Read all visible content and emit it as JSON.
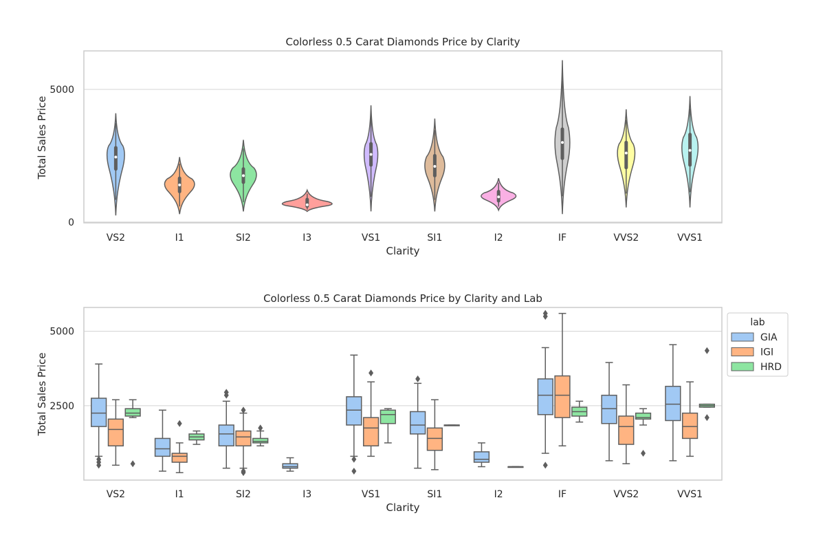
{
  "chart_data": [
    {
      "type": "violin",
      "title": "Colorless 0.5 Carat Diamonds Price by Clarity",
      "xlabel": "Clarity",
      "ylabel": "Total Sales Price",
      "ylim": [
        -30,
        6450
      ],
      "yticks": [
        0,
        5000
      ],
      "grid": true,
      "categories": [
        "VS2",
        "I1",
        "SI2",
        "I3",
        "VS1",
        "SI1",
        "I2",
        "IF",
        "VVS2",
        "VVS1"
      ],
      "colors": [
        "#a1c9f4",
        "#ffb482",
        "#8de5a1",
        "#ff9f9b",
        "#d0bbff",
        "#debb9b",
        "#fab0e4",
        "#cfcfcf",
        "#fffea3",
        "#b9f2f0"
      ],
      "violins": [
        {
          "min": 250,
          "max": 4100,
          "q1": 2000,
          "median": 2450,
          "q3": 2800,
          "center": 2600,
          "halfwidth": 0.14
        },
        {
          "min": 300,
          "max": 2450,
          "q1": 1150,
          "median": 1400,
          "q3": 1650,
          "center": 1450,
          "halfwidth": 0.24
        },
        {
          "min": 400,
          "max": 3100,
          "q1": 1500,
          "median": 1750,
          "q3": 2000,
          "center": 1800,
          "halfwidth": 0.21
        },
        {
          "min": 400,
          "max": 1200,
          "q1": 600,
          "median": 650,
          "q3": 850,
          "center": 680,
          "halfwidth": 0.4
        },
        {
          "min": 400,
          "max": 4400,
          "q1": 2150,
          "median": 2550,
          "q3": 2950,
          "center": 2600,
          "halfwidth": 0.11
        },
        {
          "min": 400,
          "max": 3900,
          "q1": 1750,
          "median": 2100,
          "q3": 2500,
          "center": 2150,
          "halfwidth": 0.16
        },
        {
          "min": 450,
          "max": 1650,
          "q1": 800,
          "median": 950,
          "q3": 1150,
          "center": 980,
          "halfwidth": 0.28
        },
        {
          "min": 300,
          "max": 6100,
          "q1": 2400,
          "median": 3000,
          "q3": 3500,
          "center": 3000,
          "halfwidth": 0.12
        },
        {
          "min": 550,
          "max": 4250,
          "q1": 2050,
          "median": 2600,
          "q3": 3000,
          "center": 2650,
          "halfwidth": 0.14
        },
        {
          "min": 550,
          "max": 4750,
          "q1": 2150,
          "median": 2700,
          "q3": 3300,
          "center": 2850,
          "halfwidth": 0.13
        }
      ]
    },
    {
      "type": "box",
      "title": "Colorless 0.5 Carat Diamonds Price by Clarity and Lab",
      "xlabel": "Clarity",
      "ylabel": "Total Sales Price",
      "ylim": [
        0,
        5800
      ],
      "yticks": [
        2500,
        5000
      ],
      "grid": true,
      "legend": {
        "title": "lab",
        "position": "outside right"
      },
      "categories": [
        "VS2",
        "I1",
        "SI2",
        "I3",
        "VS1",
        "SI1",
        "I2",
        "IF",
        "VVS2",
        "VVS1"
      ],
      "series": [
        {
          "name": "GIA",
          "color": "#a1c9f4",
          "boxes": [
            {
              "whislo": 800,
              "q1": 1800,
              "median": 2250,
              "q3": 2750,
              "whishi": 3900,
              "fliers": [
                700,
                600,
                500
              ]
            },
            {
              "whislo": 300,
              "q1": 800,
              "median": 1050,
              "q3": 1400,
              "whishi": 2350,
              "fliers": []
            },
            {
              "whislo": 400,
              "q1": 1150,
              "median": 1550,
              "q3": 1850,
              "whishi": 2650,
              "fliers": [
                2850,
                2950
              ]
            },
            {
              "whislo": 300,
              "q1": 400,
              "median": 450,
              "q3": 550,
              "whishi": 750,
              "fliers": []
            },
            {
              "whislo": 800,
              "q1": 1850,
              "median": 2350,
              "q3": 2800,
              "whishi": 4200,
              "fliers": [
                700,
                300
              ]
            },
            {
              "whislo": 400,
              "q1": 1550,
              "median": 1850,
              "q3": 2300,
              "whishi": 3250,
              "fliers": [
                3400
              ]
            },
            {
              "whislo": 450,
              "q1": 600,
              "median": 700,
              "q3": 950,
              "whishi": 1250,
              "fliers": []
            },
            {
              "whislo": 900,
              "q1": 2200,
              "median": 2850,
              "q3": 3400,
              "whishi": 4450,
              "fliers": [
                5500,
                5600,
                500
              ]
            },
            {
              "whislo": 650,
              "q1": 1900,
              "median": 2400,
              "q3": 2850,
              "whishi": 3950,
              "fliers": []
            },
            {
              "whislo": 650,
              "q1": 2000,
              "median": 2550,
              "q3": 3150,
              "whishi": 4550,
              "fliers": []
            }
          ]
        },
        {
          "name": "IGI",
          "color": "#ffb482",
          "boxes": [
            {
              "whislo": 500,
              "q1": 1150,
              "median": 1700,
              "q3": 2050,
              "whishi": 2700,
              "fliers": []
            },
            {
              "whislo": 250,
              "q1": 600,
              "median": 800,
              "q3": 900,
              "whishi": 1250,
              "fliers": [
                1900
              ]
            },
            {
              "whislo": 400,
              "q1": 1150,
              "median": 1450,
              "q3": 1650,
              "whishi": 2250,
              "fliers": [
                2350,
                300,
                250
              ]
            },
            {
              "whislo": 800,
              "q1": 1150,
              "median": 1750,
              "q3": 2100,
              "whishi": 3300,
              "fliers": [
                3600
              ]
            },
            {
              "whislo": 350,
              "q1": 1000,
              "median": 1400,
              "q3": 1750,
              "whishi": 2700,
              "fliers": []
            },
            {
              "whislo": 1150,
              "q1": 2100,
              "median": 2850,
              "q3": 3500,
              "whishi": 5600,
              "fliers": []
            },
            {
              "whislo": 550,
              "q1": 1200,
              "median": 1800,
              "q3": 2150,
              "whishi": 3200,
              "fliers": []
            },
            {
              "whislo": 800,
              "q1": 1400,
              "median": 1800,
              "q3": 2250,
              "whishi": 3300,
              "fliers": []
            }
          ]
        },
        {
          "name": "HRD",
          "color": "#8de5a1",
          "boxes": [
            {
              "whislo": 2100,
              "q1": 2150,
              "median": 2250,
              "q3": 2400,
              "whishi": 2700,
              "fliers": [
                550
              ]
            },
            {
              "whislo": 1200,
              "q1": 1350,
              "median": 1450,
              "q3": 1550,
              "whishi": 1650,
              "fliers": []
            },
            {
              "whislo": 1150,
              "q1": 1250,
              "median": 1300,
              "q3": 1400,
              "whishi": 1650,
              "fliers": [
                1750
              ]
            },
            {
              "whislo": 1250,
              "q1": 1900,
              "median": 2200,
              "q3": 2350,
              "whishi": 2400,
              "fliers": []
            },
            {
              "whislo": 1850,
              "q1": 1850,
              "median": 1850,
              "q3": 1850,
              "whishi": 1850,
              "fliers": []
            },
            {
              "whislo": 450,
              "q1": 450,
              "median": 450,
              "q3": 450,
              "whishi": 450,
              "fliers": []
            },
            {
              "whislo": 1950,
              "q1": 2150,
              "median": 2300,
              "q3": 2450,
              "whishi": 2650,
              "fliers": []
            },
            {
              "whislo": 1850,
              "q1": 2050,
              "median": 2100,
              "q3": 2250,
              "whishi": 2400,
              "fliers": [
                900
              ]
            },
            {
              "whislo": 2450,
              "q1": 2450,
              "median": 2500,
              "q3": 2550,
              "whishi": 2550,
              "fliers": [
                2100,
                4350
              ]
            }
          ]
        }
      ],
      "hrd_positions": [
        0,
        1,
        2,
        null,
        4,
        5,
        6,
        7,
        8,
        9
      ],
      "igi_positions": [
        0,
        1,
        2,
        null,
        4,
        5,
        null,
        7,
        8,
        9
      ]
    }
  ]
}
